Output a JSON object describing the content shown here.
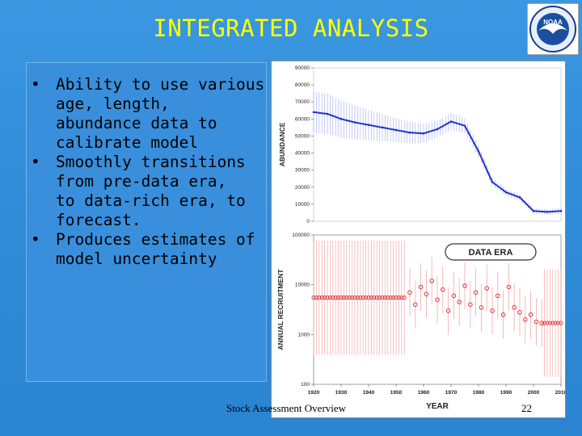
{
  "slide": {
    "title": "INTEGRATED ANALYSIS",
    "bullets": [
      "Ability to use various age, length, abundance data to calibrate model",
      "Smoothly transitions from pre-data era, to data-rich era, to forecast.",
      "Produces estimates of model uncertainty"
    ],
    "bullet_lines": [
      [
        "Ability to use various",
        "age, length,",
        "abundance data to",
        "calibrate model"
      ],
      [
        "Smoothly transitions",
        "from pre-data era,",
        "to data-rich era, to",
        "forecast."
      ],
      [
        "Produces estimates of",
        "model uncertainty"
      ]
    ],
    "footer": "Stock Assessment Overview",
    "page_number": "22",
    "logo_text": "NOAA",
    "colors": {
      "title": "#ffff00",
      "background": "#2f8fda",
      "series_top": "#2233cc",
      "series_bottom": "#dd2222"
    }
  },
  "chart_data": [
    {
      "type": "line",
      "ylabel": "ABUNDANCE",
      "ylim": [
        0,
        90000
      ],
      "yticks": [
        "90000",
        "80000",
        "70000",
        "60000",
        "50000",
        "40000",
        "30000",
        "20000",
        "10000",
        "0"
      ],
      "x": [
        1920,
        1925,
        1930,
        1935,
        1940,
        1945,
        1950,
        1955,
        1960,
        1965,
        1970,
        1975,
        1980,
        1985,
        1990,
        1995,
        2000,
        2005,
        2010
      ],
      "values": [
        64000,
        63000,
        60000,
        58000,
        56500,
        55000,
        53500,
        52000,
        51500,
        54000,
        58500,
        56000,
        41000,
        23000,
        17000,
        14000,
        6000,
        5500,
        6000
      ],
      "error_band": [
        12000,
        12000,
        11000,
        10000,
        9000,
        8000,
        7000,
        6500,
        5500,
        5000,
        5000,
        4500,
        3500,
        2500,
        2000,
        1800,
        1500,
        1500,
        1800
      ]
    },
    {
      "type": "scatter",
      "ylabel": "ANNUAL RECRUITMENT",
      "xlabel": "YEAR",
      "yscale": "log",
      "ylim": [
        100,
        100000
      ],
      "yticks": [
        "100000",
        "10000",
        "1000",
        "100"
      ],
      "xticks": [
        "1920",
        "1930",
        "1940",
        "1950",
        "1960",
        "1970",
        "1980",
        "1990",
        "2000",
        "2010"
      ],
      "annotation": "DATA ERA",
      "pre_data_level": 5500,
      "data_era_x": [
        1955,
        1957,
        1959,
        1961,
        1963,
        1965,
        1967,
        1969,
        1971,
        1973,
        1975,
        1977,
        1979,
        1981,
        1983,
        1985,
        1987,
        1989,
        1991,
        1993,
        1995,
        1997,
        1999,
        2001,
        2003
      ],
      "data_era_y": [
        7000,
        4000,
        9000,
        6500,
        12000,
        5000,
        8000,
        3000,
        6000,
        4500,
        9500,
        4000,
        7000,
        3500,
        8500,
        3000,
        6000,
        2500,
        9000,
        3500,
        2800,
        2000,
        2500,
        1800,
        1700
      ]
    }
  ]
}
